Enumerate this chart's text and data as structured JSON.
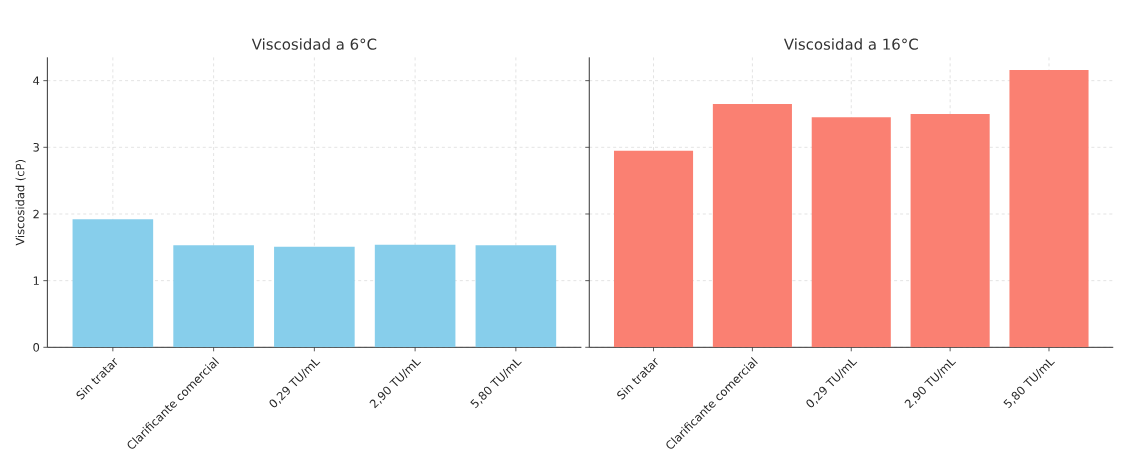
{
  "chart_data": [
    {
      "type": "bar",
      "title": "Viscosidad a 6°C",
      "ylabel": "Viscosidad (cP)",
      "categories": [
        "Sin tratar",
        "Clarificante comercial",
        "0,29 TU/mL",
        "2,90 TU/mL",
        "5,80 TU/mL"
      ],
      "values": [
        1.92,
        1.53,
        1.51,
        1.54,
        1.53
      ],
      "color": "#87ceeb",
      "ylim": [
        0,
        4.35
      ],
      "yticks": [
        0,
        1,
        2,
        3,
        4
      ],
      "grid": true
    },
    {
      "type": "bar",
      "title": "Viscosidad a 16°C",
      "categories": [
        "Sin tratar",
        "Clarificante comercial",
        "0,29 TU/mL",
        "2,90 TU/mL",
        "5,80 TU/mL"
      ],
      "values": [
        2.95,
        3.65,
        3.45,
        3.5,
        4.16
      ],
      "color": "#fa8072",
      "ylim": [
        0,
        4.35
      ],
      "yticks": [
        0,
        1,
        2,
        3,
        4
      ],
      "grid": true,
      "tick_labels": "x"
    }
  ]
}
